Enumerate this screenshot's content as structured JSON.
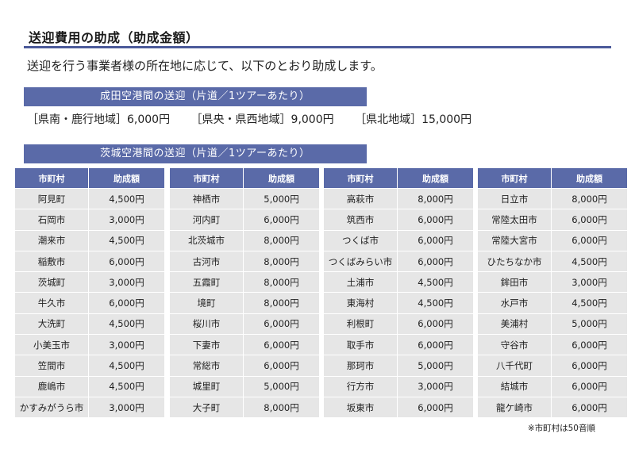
{
  "title": "送迎費用の助成（助成金額）",
  "intro": "送迎を行う事業者様の所在地に応じて、以下のとおり助成します。",
  "narita": {
    "heading": "成田空港間の送迎（片道／1ツアーあたり）",
    "items": [
      "［県南・鹿行地域］6,000円",
      "［県央・県西地域］9,000円",
      "［県北地域］15,000円"
    ]
  },
  "ibaraki": {
    "heading": "茨城空港間の送迎（片道／1ツアーあたり）",
    "col_city": "市町村",
    "col_amount": "助成額",
    "groups": [
      [
        {
          "city": "阿見町",
          "amount": "4,500円"
        },
        {
          "city": "石岡市",
          "amount": "3,000円"
        },
        {
          "city": "潮来市",
          "amount": "4,500円"
        },
        {
          "city": "稲敷市",
          "amount": "6,000円"
        },
        {
          "city": "茨城町",
          "amount": "3,000円"
        },
        {
          "city": "牛久市",
          "amount": "6,000円"
        },
        {
          "city": "大洗町",
          "amount": "4,500円"
        },
        {
          "city": "小美玉市",
          "amount": "3,000円"
        },
        {
          "city": "笠間市",
          "amount": "4,500円"
        },
        {
          "city": "鹿嶋市",
          "amount": "4,500円"
        },
        {
          "city": "かすみがうら市",
          "amount": "3,000円"
        }
      ],
      [
        {
          "city": "神栖市",
          "amount": "5,000円"
        },
        {
          "city": "河内町",
          "amount": "6,000円"
        },
        {
          "city": "北茨城市",
          "amount": "8,000円"
        },
        {
          "city": "古河市",
          "amount": "8,000円"
        },
        {
          "city": "五霞町",
          "amount": "8,000円"
        },
        {
          "city": "境町",
          "amount": "8,000円"
        },
        {
          "city": "桜川市",
          "amount": "6,000円"
        },
        {
          "city": "下妻市",
          "amount": "6,000円"
        },
        {
          "city": "常総市",
          "amount": "6,000円"
        },
        {
          "city": "城里町",
          "amount": "5,000円"
        },
        {
          "city": "大子町",
          "amount": "8,000円"
        }
      ],
      [
        {
          "city": "高萩市",
          "amount": "8,000円"
        },
        {
          "city": "筑西市",
          "amount": "6,000円"
        },
        {
          "city": "つくば市",
          "amount": "6,000円"
        },
        {
          "city": "つくばみらい市",
          "amount": "6,000円"
        },
        {
          "city": "土浦市",
          "amount": "4,500円"
        },
        {
          "city": "東海村",
          "amount": "4,500円"
        },
        {
          "city": "利根町",
          "amount": "6,000円"
        },
        {
          "city": "取手市",
          "amount": "6,000円"
        },
        {
          "city": "那珂市",
          "amount": "5,000円"
        },
        {
          "city": "行方市",
          "amount": "3,000円"
        },
        {
          "city": "坂東市",
          "amount": "6,000円"
        }
      ],
      [
        {
          "city": "日立市",
          "amount": "8,000円"
        },
        {
          "city": "常陸太田市",
          "amount": "6,000円"
        },
        {
          "city": "常陸大宮市",
          "amount": "6,000円"
        },
        {
          "city": "ひたちなか市",
          "amount": "4,500円"
        },
        {
          "city": "鉾田市",
          "amount": "3,000円"
        },
        {
          "city": "水戸市",
          "amount": "4,500円"
        },
        {
          "city": "美浦村",
          "amount": "5,000円"
        },
        {
          "city": "守谷市",
          "amount": "6,000円"
        },
        {
          "city": "八千代町",
          "amount": "6,000円"
        },
        {
          "city": "結城市",
          "amount": "6,000円"
        },
        {
          "city": "龍ケ崎市",
          "amount": "6,000円"
        }
      ]
    ]
  },
  "footnote": "※市町村は50音順",
  "colors": {
    "accent": "#5a6aa8",
    "rule": "#4b5a9a",
    "cell": "#e6e6e6"
  }
}
